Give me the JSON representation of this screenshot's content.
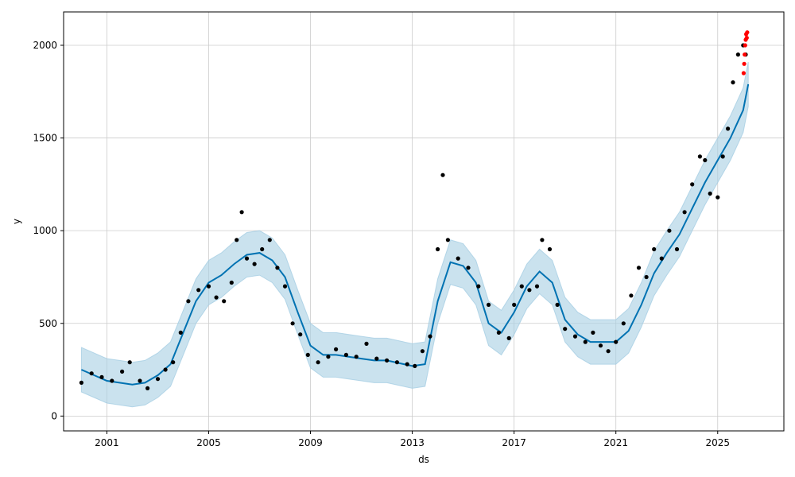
{
  "chart_data": {
    "type": "scatter",
    "xlabel": "ds",
    "ylabel": "y",
    "xlim": [
      1999.3,
      2027.6
    ],
    "ylim": [
      -80,
      2180
    ],
    "x_ticks": [
      {
        "value": 2001,
        "label": "2001"
      },
      {
        "value": 2005,
        "label": "2005"
      },
      {
        "value": 2009,
        "label": "2009"
      },
      {
        "value": 2013,
        "label": "2013"
      },
      {
        "value": 2017,
        "label": "2017"
      },
      {
        "value": 2021,
        "label": "2021"
      },
      {
        "value": 2025,
        "label": "2025"
      }
    ],
    "y_ticks": [
      {
        "value": 0,
        "label": "0"
      },
      {
        "value": 500,
        "label": "500"
      },
      {
        "value": 1000,
        "label": "1000"
      },
      {
        "value": 1500,
        "label": "1500"
      },
      {
        "value": 2000,
        "label": "2000"
      }
    ],
    "grid": true,
    "colors": {
      "observed": "#000000",
      "outlier": "#ff0000",
      "forecast": "#0072b2",
      "interval": "#a6cee3"
    },
    "series": [
      {
        "role": "observed",
        "x": [
          2000.0,
          2000.4,
          2000.8,
          2001.2,
          2001.6,
          2001.9,
          2002.3,
          2002.6,
          2003.0,
          2003.3,
          2003.6,
          2003.9,
          2004.2,
          2004.6,
          2005.0,
          2005.3,
          2005.6,
          2005.9,
          2006.1,
          2006.3,
          2006.5,
          2006.8,
          2007.1,
          2007.4,
          2007.7,
          2008.0,
          2008.3,
          2008.6,
          2008.9,
          2009.3,
          2009.7,
          2010.0,
          2010.4,
          2010.8,
          2011.2,
          2011.6,
          2012.0,
          2012.4,
          2012.8,
          2013.1,
          2013.4,
          2013.7,
          2014.0,
          2014.2,
          2014.4,
          2014.8,
          2015.2,
          2015.6,
          2016.0,
          2016.4,
          2016.8,
          2017.0,
          2017.3,
          2017.6,
          2017.9,
          2018.1,
          2018.4,
          2018.7,
          2019.0,
          2019.4,
          2019.8,
          2020.1,
          2020.4,
          2020.7,
          2021.0,
          2021.3,
          2021.6,
          2021.9,
          2022.2,
          2022.5,
          2022.8,
          2023.1,
          2023.4,
          2023.7,
          2024.0,
          2024.3,
          2024.5,
          2024.7,
          2025.0,
          2025.2,
          2025.4,
          2025.6,
          2025.8,
          2026.0,
          2026.1
        ],
        "y": [
          180,
          230,
          210,
          190,
          240,
          290,
          190,
          150,
          200,
          250,
          290,
          450,
          620,
          680,
          700,
          640,
          620,
          720,
          950,
          1100,
          850,
          820,
          900,
          950,
          800,
          700,
          500,
          440,
          330,
          290,
          320,
          360,
          330,
          320,
          390,
          310,
          300,
          290,
          280,
          270,
          350,
          430,
          900,
          1300,
          950,
          850,
          800,
          700,
          600,
          450,
          420,
          600,
          700,
          680,
          700,
          950,
          900,
          600,
          470,
          430,
          400,
          450,
          380,
          350,
          400,
          500,
          650,
          800,
          750,
          900,
          850,
          1000,
          900,
          1100,
          1250,
          1400,
          1380,
          1200,
          1180,
          1400,
          1550,
          1800,
          1950,
          2000,
          1950
        ]
      },
      {
        "role": "outlier",
        "x": [
          2026.02,
          2026.04,
          2026.06,
          2026.08,
          2026.1,
          2026.12,
          2026.14,
          2026.16
        ],
        "y": [
          1850,
          1900,
          1950,
          2000,
          2030,
          2060,
          2040,
          2070
        ]
      },
      {
        "role": "forecast",
        "x": [
          2000.0,
          2000.5,
          2001.0,
          2001.5,
          2002.0,
          2002.5,
          2003.0,
          2003.5,
          2004.0,
          2004.5,
          2005.0,
          2005.5,
          2006.0,
          2006.5,
          2007.0,
          2007.5,
          2008.0,
          2008.5,
          2009.0,
          2009.5,
          2010.0,
          2010.5,
          2011.0,
          2011.5,
          2012.0,
          2012.5,
          2013.0,
          2013.5,
          2014.0,
          2014.5,
          2015.0,
          2015.5,
          2016.0,
          2016.5,
          2017.0,
          2017.5,
          2018.0,
          2018.5,
          2019.0,
          2019.5,
          2020.0,
          2020.5,
          2021.0,
          2021.5,
          2022.0,
          2022.5,
          2023.0,
          2023.5,
          2024.0,
          2024.5,
          2025.0,
          2025.5,
          2026.0,
          2026.2
        ],
        "y": [
          250,
          220,
          190,
          180,
          170,
          180,
          220,
          280,
          450,
          620,
          720,
          760,
          820,
          870,
          880,
          840,
          750,
          560,
          380,
          330,
          330,
          320,
          310,
          300,
          300,
          285,
          270,
          280,
          620,
          830,
          810,
          720,
          500,
          450,
          560,
          700,
          780,
          720,
          520,
          440,
          400,
          400,
          400,
          460,
          600,
          770,
          880,
          980,
          1120,
          1260,
          1380,
          1500,
          1650,
          1790
        ]
      },
      {
        "role": "interval",
        "x": [
          2000.0,
          2000.5,
          2001.0,
          2001.5,
          2002.0,
          2002.5,
          2003.0,
          2003.5,
          2004.0,
          2004.5,
          2005.0,
          2005.5,
          2006.0,
          2006.5,
          2007.0,
          2007.5,
          2008.0,
          2008.5,
          2009.0,
          2009.5,
          2010.0,
          2010.5,
          2011.0,
          2011.5,
          2012.0,
          2012.5,
          2013.0,
          2013.5,
          2014.0,
          2014.5,
          2015.0,
          2015.5,
          2016.0,
          2016.5,
          2017.0,
          2017.5,
          2018.0,
          2018.5,
          2019.0,
          2019.5,
          2020.0,
          2020.5,
          2021.0,
          2021.5,
          2022.0,
          2022.5,
          2023.0,
          2023.5,
          2024.0,
          2024.5,
          2025.0,
          2025.5,
          2026.0,
          2026.2
        ],
        "lower": [
          130,
          100,
          70,
          60,
          50,
          60,
          100,
          160,
          330,
          500,
          600,
          640,
          700,
          750,
          760,
          720,
          630,
          440,
          260,
          210,
          210,
          200,
          190,
          180,
          180,
          165,
          150,
          160,
          500,
          710,
          690,
          600,
          380,
          330,
          440,
          580,
          660,
          600,
          400,
          320,
          280,
          280,
          280,
          340,
          480,
          650,
          760,
          860,
          1000,
          1140,
          1260,
          1380,
          1530,
          1670
        ],
        "upper": [
          370,
          340,
          310,
          300,
          290,
          300,
          340,
          400,
          570,
          740,
          840,
          880,
          940,
          990,
          1000,
          960,
          870,
          680,
          500,
          450,
          450,
          440,
          430,
          420,
          420,
          405,
          390,
          400,
          740,
          950,
          930,
          840,
          620,
          570,
          680,
          820,
          900,
          840,
          640,
          560,
          520,
          520,
          520,
          580,
          720,
          890,
          1000,
          1100,
          1240,
          1380,
          1500,
          1620,
          1770,
          1910
        ]
      }
    ]
  }
}
